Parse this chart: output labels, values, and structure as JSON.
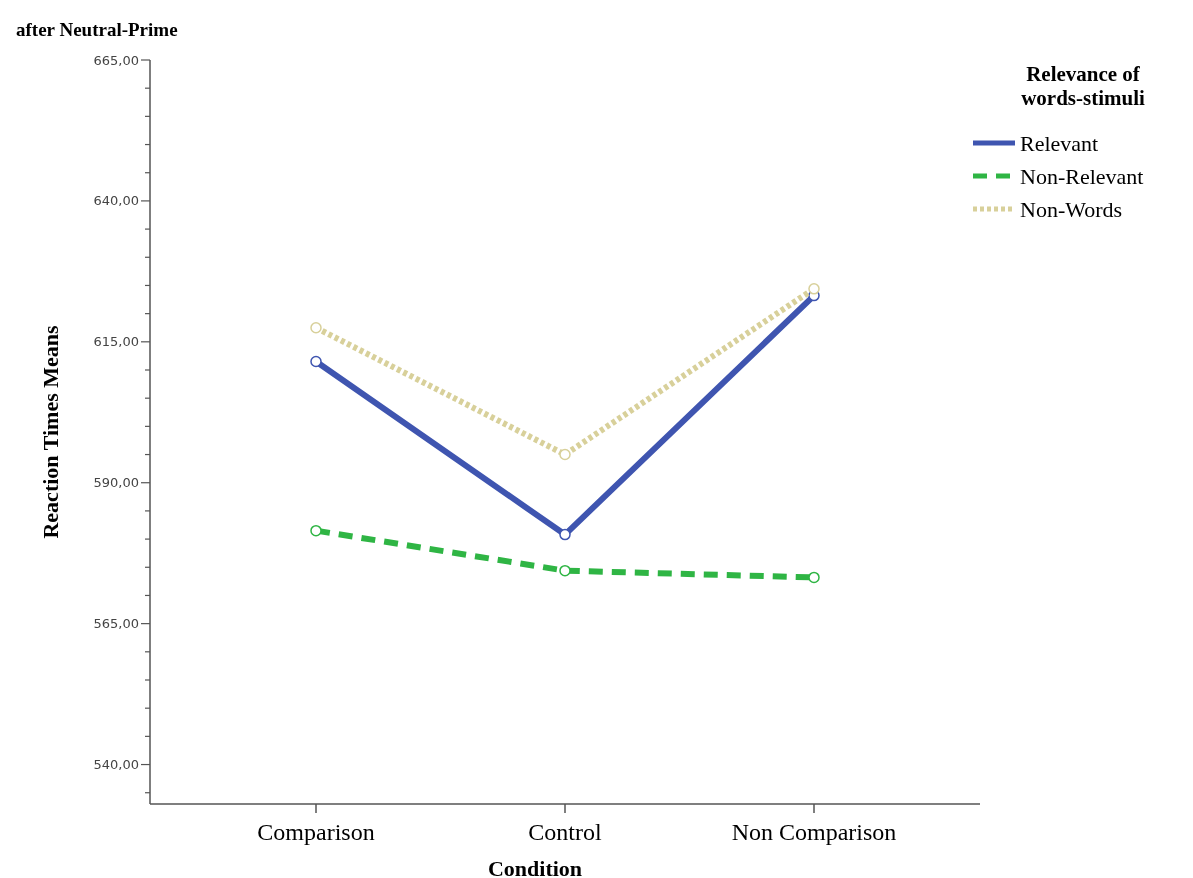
{
  "chart_data": {
    "type": "line",
    "title": "after Neutral-Prime",
    "xlabel": "Condition",
    "ylabel": "Reaction Times Means",
    "legend_title": "Relevance of words-stimuli",
    "categories": [
      "Comparison",
      "Control",
      "Non Comparison"
    ],
    "series": [
      {
        "name": "Relevant",
        "color": "#3f55b0",
        "line_style": "solid",
        "values": [
          611.5,
          580.8,
          623.2
        ]
      },
      {
        "name": "Non-Relevant",
        "color": "#2fb544",
        "line_style": "dashed",
        "values": [
          581.5,
          574.4,
          573.2
        ]
      },
      {
        "name": "Non-Words",
        "color": "#d8d09a",
        "line_style": "dotted",
        "values": [
          617.5,
          595.0,
          624.4
        ]
      }
    ],
    "ylim": [
      533,
      665
    ],
    "yticks": [
      {
        "value": 535,
        "label": null
      },
      {
        "value": 540,
        "label": "540,00"
      },
      {
        "value": 545,
        "label": null
      },
      {
        "value": 550,
        "label": null
      },
      {
        "value": 555,
        "label": null
      },
      {
        "value": 560,
        "label": null
      },
      {
        "value": 565,
        "label": "565,00"
      },
      {
        "value": 570,
        "label": null
      },
      {
        "value": 575,
        "label": null
      },
      {
        "value": 580,
        "label": null
      },
      {
        "value": 585,
        "label": null
      },
      {
        "value": 590,
        "label": "590,00"
      },
      {
        "value": 595,
        "label": null
      },
      {
        "value": 600,
        "label": null
      },
      {
        "value": 605,
        "label": null
      },
      {
        "value": 610,
        "label": null
      },
      {
        "value": 615,
        "label": "615,00"
      },
      {
        "value": 620,
        "label": null
      },
      {
        "value": 625,
        "label": null
      },
      {
        "value": 630,
        "label": null
      },
      {
        "value": 635,
        "label": null
      },
      {
        "value": 640,
        "label": "640,00"
      },
      {
        "value": 645,
        "label": null
      },
      {
        "value": 650,
        "label": null
      },
      {
        "value": 655,
        "label": null
      },
      {
        "value": 660,
        "label": null
      },
      {
        "value": 665,
        "label": "665,00"
      }
    ],
    "grid": false,
    "legend": "top right",
    "marker": "circle"
  }
}
